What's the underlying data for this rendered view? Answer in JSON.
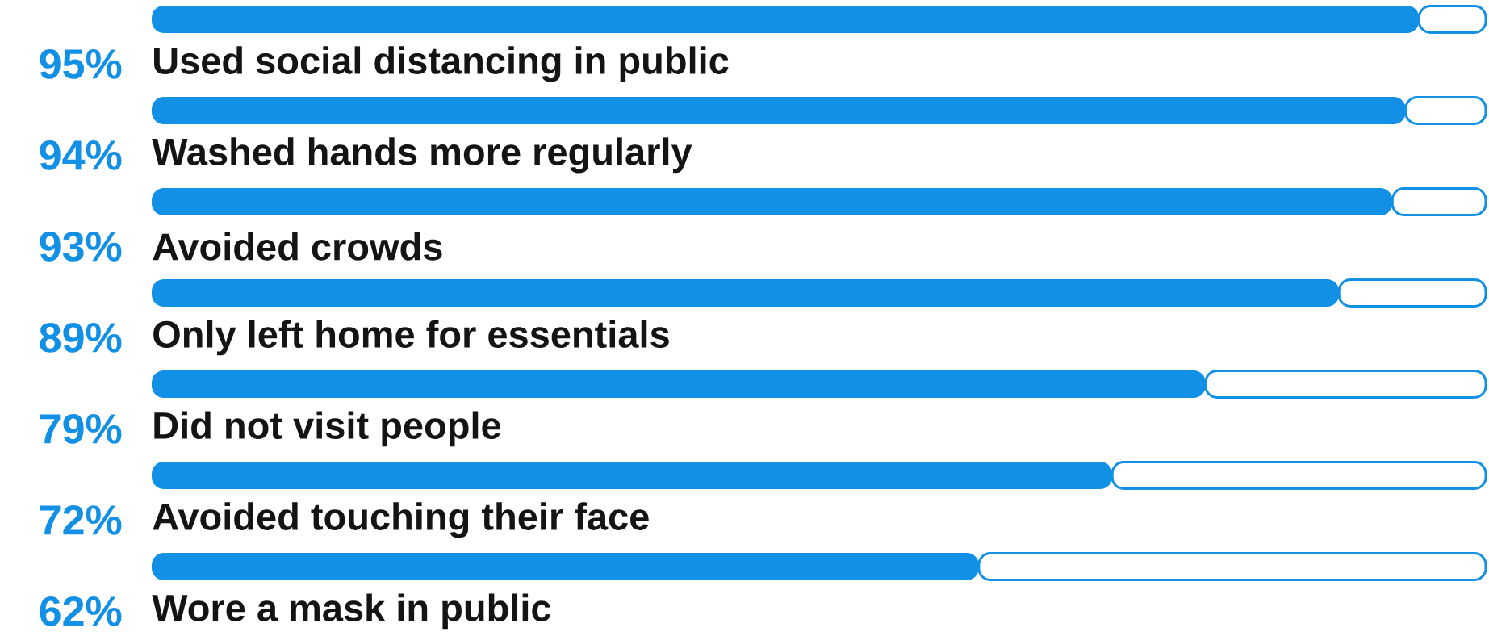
{
  "chart_data": {
    "type": "bar",
    "orientation": "horizontal",
    "stacked": true,
    "categories": [
      "Used social distancing in public",
      "Washed hands more regularly",
      "Avoided crowds",
      "Only left home for essentials",
      "Did not visit people",
      "Avoided touching their face",
      "Wore a mask in public"
    ],
    "series": [
      {
        "color": "#1190e6",
        "values": [
          95,
          94,
          93,
          89,
          79,
          72,
          62
        ],
        "value_labels": [
          "95%",
          "94%",
          "93%",
          "89%",
          "79%",
          "72%",
          "62%"
        ]
      },
      {
        "color": "#ffffff",
        "values": [
          5,
          6,
          7,
          11,
          21,
          28,
          38
        ]
      }
    ],
    "xlim": [
      0,
      100
    ]
  }
}
